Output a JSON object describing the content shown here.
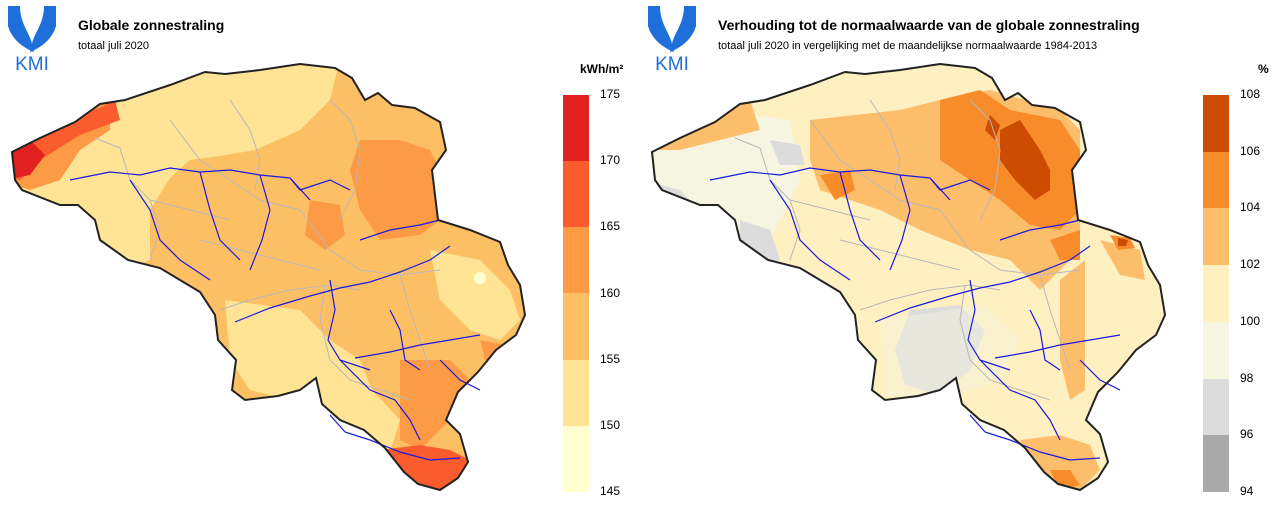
{
  "logo_text": "KMI",
  "panels": [
    {
      "title": "Globale zonnestraling",
      "subtitle": "totaal juli 2020",
      "unit": "kWh/m²",
      "legend": {
        "ticks": [
          "175",
          "170",
          "165",
          "160",
          "155",
          "150",
          "145"
        ],
        "colors": [
          "#e12020",
          "#fb5c2e",
          "#fc9a45",
          "#fdbf63",
          "#fee494",
          "#ffffd0"
        ]
      }
    },
    {
      "title": "Verhouding tot de normaalwaarde van de globale zonnestraling",
      "subtitle": "totaal juli 2020 in vergelijking met de maandelijkse normaalwaarde 1984-2013",
      "unit": "%",
      "legend": {
        "ticks": [
          "108",
          "106",
          "104",
          "102",
          "100",
          "98",
          "96",
          "94"
        ],
        "colors": [
          "#cc4c02",
          "#f88b2a",
          "#fdbe6c",
          "#fff0c1",
          "#f5f5e1",
          "#dcdcdc",
          "#aaaaaa"
        ]
      }
    }
  ]
}
